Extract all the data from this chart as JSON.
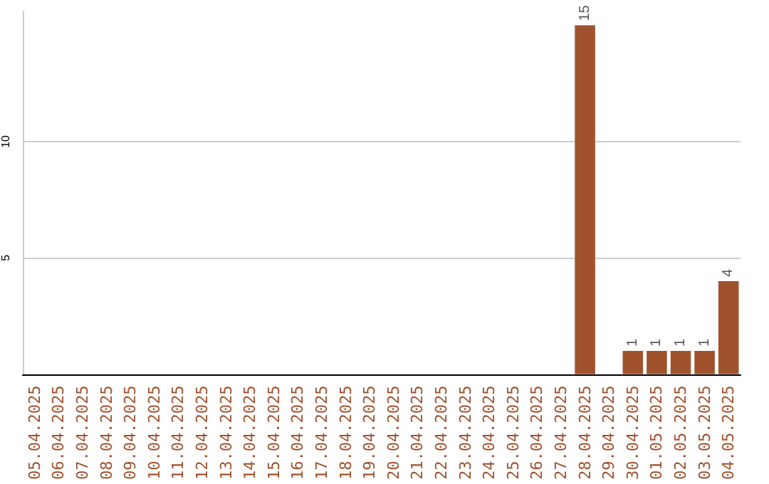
{
  "chart_data": {
    "type": "bar",
    "categories": [
      "05.04.2025",
      "06.04.2025",
      "07.04.2025",
      "08.04.2025",
      "09.04.2025",
      "10.04.2025",
      "11.04.2025",
      "12.04.2025",
      "13.04.2025",
      "14.04.2025",
      "15.04.2025",
      "16.04.2025",
      "17.04.2025",
      "18.04.2025",
      "19.04.2025",
      "20.04.2025",
      "21.04.2025",
      "22.04.2025",
      "23.04.2025",
      "24.04.2025",
      "25.04.2025",
      "26.04.2025",
      "27.04.2025",
      "28.04.2025",
      "29.04.2025",
      "30.04.2025",
      "01.05.2025",
      "02.05.2025",
      "03.05.2025",
      "04.05.2025"
    ],
    "values": [
      0,
      0,
      0,
      0,
      0,
      0,
      0,
      0,
      0,
      0,
      0,
      0,
      0,
      0,
      0,
      0,
      0,
      0,
      0,
      0,
      0,
      0,
      0,
      15,
      0,
      1,
      1,
      1,
      1,
      4
    ],
    "value_labels": [
      null,
      null,
      null,
      null,
      null,
      null,
      null,
      null,
      null,
      null,
      null,
      null,
      null,
      null,
      null,
      null,
      null,
      null,
      null,
      null,
      null,
      null,
      null,
      "15",
      null,
      "1",
      "1",
      "1",
      "1",
      "4"
    ],
    "color": "#a0522d",
    "ylim": [
      0,
      15.6
    ],
    "yticks": [
      5,
      10
    ],
    "grid": "y"
  }
}
